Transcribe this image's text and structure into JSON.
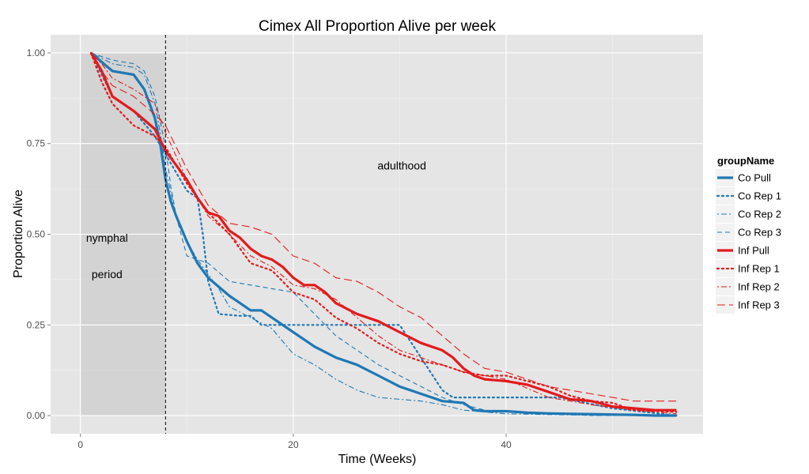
{
  "chart_data": {
    "type": "line",
    "title": "Cimex All Proportion Alive per week",
    "xlabel": "Time (Weeks)",
    "ylabel": "Proportion Alive",
    "xlim": [
      -2.8,
      58.5
    ],
    "ylim": [
      -0.05,
      1.05
    ],
    "xticks": [
      0,
      20,
      40
    ],
    "xtick_labels": [
      "0",
      "20",
      "40"
    ],
    "yticks": [
      0,
      0.25,
      0.5,
      0.75,
      1.0
    ],
    "ytick_labels": [
      "0.00",
      "0.25",
      "0.50",
      "0.75",
      "1.00"
    ],
    "grid": true,
    "legend_position": "right",
    "legend_title": "groupName",
    "shaded_region": {
      "x_start": 0,
      "x_end": 8,
      "y_start": 0,
      "y_end": 1
    },
    "vline": {
      "x": 8,
      "style": "dashed",
      "color": "#000000"
    },
    "annotations": [
      {
        "text": "nymphal",
        "x": 2.5,
        "y": 0.49
      },
      {
        "text": "period",
        "x": 2.5,
        "y": 0.39
      },
      {
        "text": "adulthood",
        "x": 30.2,
        "y": 0.69
      }
    ],
    "series": [
      {
        "name": "Co Pull",
        "color": "#1f78b4",
        "dash": "solid",
        "width": 3.2,
        "x": [
          1,
          3,
          5,
          6,
          7,
          7.5,
          8,
          8.5,
          9,
          10,
          11,
          12,
          14,
          16,
          17,
          18,
          20,
          22,
          24,
          26,
          28,
          30,
          32,
          34,
          36,
          37,
          38,
          40,
          42,
          44,
          46,
          48,
          50,
          52,
          54,
          56
        ],
        "y": [
          1.0,
          0.95,
          0.94,
          0.9,
          0.82,
          0.75,
          0.65,
          0.59,
          0.55,
          0.48,
          0.42,
          0.38,
          0.33,
          0.29,
          0.29,
          0.27,
          0.23,
          0.19,
          0.16,
          0.14,
          0.11,
          0.08,
          0.06,
          0.04,
          0.035,
          0.015,
          0.012,
          0.012,
          0.008,
          0.006,
          0.005,
          0.004,
          0.003,
          0.002,
          0.0,
          0.0
        ]
      },
      {
        "name": "Co Rep 1",
        "color": "#1f78b4",
        "dash": "dotted",
        "width": 2.2,
        "x": [
          1,
          3,
          5,
          7,
          8,
          9,
          10,
          11,
          11.5,
          12,
          13,
          15,
          16,
          17,
          20,
          25,
          27,
          30,
          34,
          35,
          40,
          45,
          50,
          56
        ],
        "y": [
          1.0,
          0.88,
          0.84,
          0.77,
          0.72,
          0.67,
          0.62,
          0.6,
          0.5,
          0.37,
          0.28,
          0.275,
          0.275,
          0.25,
          0.25,
          0.25,
          0.25,
          0.25,
          0.07,
          0.05,
          0.05,
          0.05,
          0.02,
          0.0
        ]
      },
      {
        "name": "Co Rep 2",
        "color": "#1f78b4",
        "dash": "dashdot",
        "width": 1.1,
        "x": [
          1,
          3,
          5,
          6,
          7,
          7.5,
          8,
          9,
          10,
          11,
          12,
          13,
          14,
          16,
          18,
          20,
          22,
          24,
          26,
          28,
          30,
          32,
          34,
          36,
          38,
          40,
          45,
          50,
          56
        ],
        "y": [
          1.0,
          0.97,
          0.96,
          0.94,
          0.86,
          0.78,
          0.68,
          0.55,
          0.48,
          0.43,
          0.39,
          0.35,
          0.3,
          0.27,
          0.24,
          0.17,
          0.14,
          0.1,
          0.07,
          0.05,
          0.045,
          0.04,
          0.03,
          0.015,
          0.01,
          0.005,
          0.002,
          0.0,
          0.0
        ]
      },
      {
        "name": "Co Rep 3",
        "color": "#1f78b4",
        "dash": "dashed",
        "width": 1.1,
        "x": [
          1,
          3,
          5,
          6,
          7,
          8,
          8.5,
          9,
          10,
          12,
          14,
          16,
          18,
          20,
          22,
          24,
          26,
          28,
          30,
          32,
          34,
          36,
          38,
          40,
          44,
          48,
          56
        ],
        "y": [
          1.0,
          0.98,
          0.97,
          0.95,
          0.88,
          0.74,
          0.63,
          0.55,
          0.44,
          0.42,
          0.37,
          0.36,
          0.35,
          0.34,
          0.28,
          0.22,
          0.18,
          0.14,
          0.11,
          0.08,
          0.05,
          0.03,
          0.015,
          0.01,
          0.005,
          0.0,
          0.0
        ]
      },
      {
        "name": "Inf Pull",
        "color": "#e31a1c",
        "dash": "solid",
        "width": 3.2,
        "x": [
          1,
          2,
          3,
          5,
          7,
          8,
          10,
          11,
          12,
          13,
          14,
          15,
          16,
          17,
          18,
          19,
          20,
          21,
          22,
          23,
          24,
          26,
          28,
          30,
          32,
          34,
          35,
          36,
          37,
          38,
          40,
          42,
          44,
          46,
          48,
          50,
          52,
          54,
          56
        ],
        "y": [
          1.0,
          0.95,
          0.88,
          0.84,
          0.79,
          0.73,
          0.65,
          0.6,
          0.56,
          0.55,
          0.51,
          0.49,
          0.46,
          0.44,
          0.43,
          0.41,
          0.38,
          0.36,
          0.36,
          0.34,
          0.31,
          0.28,
          0.26,
          0.23,
          0.2,
          0.18,
          0.16,
          0.13,
          0.11,
          0.1,
          0.095,
          0.085,
          0.065,
          0.045,
          0.04,
          0.025,
          0.02,
          0.015,
          0.015
        ]
      },
      {
        "name": "Inf Rep 1",
        "color": "#e31a1c",
        "dash": "dotted",
        "width": 2.2,
        "x": [
          1,
          2,
          3,
          5,
          7,
          8,
          10,
          12,
          14,
          16,
          18,
          20,
          22,
          24,
          26,
          28,
          30,
          32,
          34,
          36,
          38,
          40,
          44,
          46,
          48,
          50,
          52,
          56
        ],
        "y": [
          1.0,
          0.92,
          0.86,
          0.8,
          0.77,
          0.74,
          0.64,
          0.56,
          0.5,
          0.42,
          0.4,
          0.34,
          0.32,
          0.27,
          0.24,
          0.2,
          0.17,
          0.15,
          0.14,
          0.12,
          0.11,
          0.11,
          0.08,
          0.055,
          0.04,
          0.035,
          0.015,
          0.01
        ]
      },
      {
        "name": "Inf Rep 2",
        "color": "#e31a1c",
        "dash": "dashdot",
        "width": 1.1,
        "x": [
          1,
          2,
          3,
          5,
          7,
          8,
          10,
          12,
          14,
          16,
          18,
          20,
          22,
          24,
          26,
          28,
          30,
          32,
          34,
          36,
          38,
          40,
          44,
          48,
          52,
          56
        ],
        "y": [
          1.0,
          0.97,
          0.93,
          0.9,
          0.86,
          0.78,
          0.65,
          0.55,
          0.5,
          0.44,
          0.41,
          0.36,
          0.35,
          0.32,
          0.27,
          0.22,
          0.18,
          0.16,
          0.14,
          0.12,
          0.11,
          0.1,
          0.05,
          0.03,
          0.015,
          0.005
        ]
      },
      {
        "name": "Inf Rep 3",
        "color": "#e31a1c",
        "dash": "longdash",
        "width": 1.1,
        "x": [
          1,
          2,
          3,
          5,
          7,
          8,
          10,
          12,
          14,
          16,
          18,
          20,
          22,
          24,
          26,
          28,
          30,
          32,
          34,
          36,
          38,
          40,
          44,
          48,
          50,
          52,
          56
        ],
        "y": [
          1.0,
          0.95,
          0.91,
          0.88,
          0.83,
          0.8,
          0.68,
          0.58,
          0.53,
          0.52,
          0.5,
          0.44,
          0.42,
          0.38,
          0.37,
          0.34,
          0.3,
          0.27,
          0.22,
          0.17,
          0.13,
          0.12,
          0.08,
          0.06,
          0.05,
          0.04,
          0.04
        ]
      }
    ]
  }
}
